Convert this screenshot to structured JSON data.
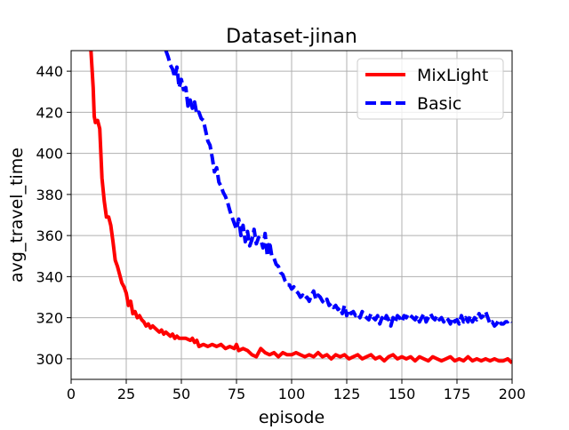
{
  "chart_data": {
    "type": "line",
    "title": "Dataset-jinan",
    "xlabel": "episode",
    "ylabel": "avg_travel_time",
    "xlim": [
      0,
      200
    ],
    "ylim": [
      290,
      450
    ],
    "xticks": [
      0,
      25,
      50,
      75,
      100,
      125,
      150,
      175,
      200
    ],
    "yticks": [
      300,
      320,
      340,
      360,
      380,
      400,
      420,
      440
    ],
    "grid": true,
    "legend_position": "top-right",
    "series": [
      {
        "name": "MixLight",
        "color": "#ff0000",
        "style": "solid",
        "points": [
          [
            9,
            450
          ],
          [
            10,
            432
          ],
          [
            10.5,
            418
          ],
          [
            11,
            415
          ],
          [
            12,
            416
          ],
          [
            13,
            412
          ],
          [
            14,
            388
          ],
          [
            15,
            377
          ],
          [
            16,
            369
          ],
          [
            17,
            369
          ],
          [
            18,
            365
          ],
          [
            19,
            357
          ],
          [
            20,
            348
          ],
          [
            21,
            345
          ],
          [
            22,
            341
          ],
          [
            23,
            337
          ],
          [
            24,
            335
          ],
          [
            25,
            332
          ],
          [
            26,
            326
          ],
          [
            27,
            328
          ],
          [
            28,
            322
          ],
          [
            29,
            323
          ],
          [
            30,
            320
          ],
          [
            31,
            321
          ],
          [
            32,
            319
          ],
          [
            33,
            318
          ],
          [
            34,
            316
          ],
          [
            35,
            317
          ],
          [
            36,
            315
          ],
          [
            37,
            316
          ],
          [
            38,
            315
          ],
          [
            39,
            314
          ],
          [
            40,
            313
          ],
          [
            41,
            314
          ],
          [
            42,
            312
          ],
          [
            43,
            313
          ],
          [
            44,
            312
          ],
          [
            45,
            311
          ],
          [
            46,
            312
          ],
          [
            47,
            310
          ],
          [
            48,
            311
          ],
          [
            49,
            310
          ],
          [
            50,
            310
          ],
          [
            52,
            310
          ],
          [
            54,
            309
          ],
          [
            55,
            310
          ],
          [
            56,
            308
          ],
          [
            57,
            309
          ],
          [
            58,
            306
          ],
          [
            60,
            307
          ],
          [
            62,
            306
          ],
          [
            64,
            307
          ],
          [
            66,
            306
          ],
          [
            68,
            307
          ],
          [
            70,
            305
          ],
          [
            72,
            306
          ],
          [
            74,
            305
          ],
          [
            75,
            307
          ],
          [
            76,
            304
          ],
          [
            78,
            305
          ],
          [
            80,
            304
          ],
          [
            82,
            302
          ],
          [
            84,
            301
          ],
          [
            85,
            303
          ],
          [
            86,
            305
          ],
          [
            88,
            303
          ],
          [
            90,
            302
          ],
          [
            92,
            303
          ],
          [
            94,
            301
          ],
          [
            96,
            303
          ],
          [
            98,
            302
          ],
          [
            100,
            302
          ],
          [
            102,
            303
          ],
          [
            104,
            302
          ],
          [
            106,
            301
          ],
          [
            108,
            302
          ],
          [
            110,
            301
          ],
          [
            112,
            303
          ],
          [
            114,
            301
          ],
          [
            116,
            302
          ],
          [
            118,
            300
          ],
          [
            120,
            302
          ],
          [
            122,
            301
          ],
          [
            124,
            302
          ],
          [
            126,
            300
          ],
          [
            128,
            301
          ],
          [
            130,
            302
          ],
          [
            132,
            300
          ],
          [
            134,
            301
          ],
          [
            136,
            302
          ],
          [
            138,
            300
          ],
          [
            140,
            301
          ],
          [
            142,
            299
          ],
          [
            144,
            301
          ],
          [
            146,
            302
          ],
          [
            148,
            300
          ],
          [
            150,
            301
          ],
          [
            152,
            300
          ],
          [
            154,
            301
          ],
          [
            156,
            299
          ],
          [
            158,
            301
          ],
          [
            160,
            300
          ],
          [
            162,
            299
          ],
          [
            164,
            301
          ],
          [
            166,
            300
          ],
          [
            168,
            299
          ],
          [
            170,
            300
          ],
          [
            172,
            301
          ],
          [
            174,
            299
          ],
          [
            176,
            300
          ],
          [
            178,
            299
          ],
          [
            180,
            301
          ],
          [
            182,
            299
          ],
          [
            184,
            300
          ],
          [
            186,
            299
          ],
          [
            188,
            300
          ],
          [
            190,
            299
          ],
          [
            192,
            300
          ],
          [
            194,
            299
          ],
          [
            196,
            299
          ],
          [
            198,
            300
          ],
          [
            200,
            298
          ]
        ]
      },
      {
        "name": "Basic",
        "color": "#0000ff",
        "style": "dashed",
        "points": [
          [
            43,
            450
          ],
          [
            44,
            447
          ],
          [
            45,
            443
          ],
          [
            46,
            441
          ],
          [
            47,
            437
          ],
          [
            48,
            442
          ],
          [
            49,
            432
          ],
          [
            50,
            436
          ],
          [
            51,
            431
          ],
          [
            52,
            432
          ],
          [
            53,
            423
          ],
          [
            54,
            426
          ],
          [
            55,
            422
          ],
          [
            56,
            425
          ],
          [
            57,
            419
          ],
          [
            58,
            420
          ],
          [
            59,
            417
          ],
          [
            60,
            416
          ],
          [
            61,
            411
          ],
          [
            62,
            406
          ],
          [
            63,
            404
          ],
          [
            64,
            398
          ],
          [
            65,
            391
          ],
          [
            66,
            393
          ],
          [
            67,
            386
          ],
          [
            68,
            384
          ],
          [
            69,
            381
          ],
          [
            70,
            379
          ],
          [
            71,
            376
          ],
          [
            72,
            372
          ],
          [
            73,
            369
          ],
          [
            74,
            366
          ],
          [
            75,
            363
          ],
          [
            76,
            368
          ],
          [
            77,
            360
          ],
          [
            78,
            365
          ],
          [
            79,
            357
          ],
          [
            80,
            362
          ],
          [
            81,
            355
          ],
          [
            82,
            358
          ],
          [
            83,
            363
          ],
          [
            84,
            356
          ],
          [
            85,
            359
          ],
          [
            86,
            358
          ],
          [
            87,
            354
          ],
          [
            88,
            361
          ],
          [
            89,
            350
          ],
          [
            90,
            357
          ],
          [
            91,
            350
          ],
          [
            92,
            349
          ],
          [
            93,
            346
          ],
          [
            94,
            345
          ],
          [
            95,
            342
          ],
          [
            96,
            341
          ],
          [
            97,
            338
          ],
          [
            98,
            336
          ],
          [
            99,
            336
          ],
          [
            100,
            334
          ],
          [
            101,
            335
          ],
          [
            102,
            333
          ],
          [
            103,
            332
          ],
          [
            104,
            330
          ],
          [
            105,
            331
          ],
          [
            106,
            329
          ],
          [
            107,
            330
          ],
          [
            108,
            328
          ],
          [
            109,
            331
          ],
          [
            110,
            333
          ],
          [
            111,
            329
          ],
          [
            112,
            331
          ],
          [
            113,
            330
          ],
          [
            114,
            328
          ],
          [
            115,
            327
          ],
          [
            116,
            329
          ],
          [
            117,
            326
          ],
          [
            118,
            327
          ],
          [
            119,
            325
          ],
          [
            120,
            326
          ],
          [
            121,
            324
          ],
          [
            122,
            325
          ],
          [
            123,
            322
          ],
          [
            124,
            326
          ],
          [
            125,
            321
          ],
          [
            126,
            324
          ],
          [
            127,
            322
          ],
          [
            128,
            323
          ],
          [
            129,
            321
          ],
          [
            130,
            322
          ],
          [
            131,
            320
          ],
          [
            132,
            323
          ],
          [
            133,
            321
          ],
          [
            134,
            320
          ],
          [
            135,
            319
          ],
          [
            136,
            322
          ],
          [
            137,
            320
          ],
          [
            138,
            319
          ],
          [
            139,
            321
          ],
          [
            140,
            317
          ],
          [
            141,
            320
          ],
          [
            142,
            318
          ],
          [
            143,
            321
          ],
          [
            144,
            319
          ],
          [
            145,
            316
          ],
          [
            146,
            320
          ],
          [
            147,
            318
          ],
          [
            148,
            321
          ],
          [
            149,
            320
          ],
          [
            150,
            318
          ],
          [
            151,
            321
          ],
          [
            152,
            320
          ],
          [
            153,
            322
          ],
          [
            154,
            321
          ],
          [
            155,
            320
          ],
          [
            156,
            319
          ],
          [
            157,
            321
          ],
          [
            158,
            318
          ],
          [
            159,
            320
          ],
          [
            160,
            322
          ],
          [
            161,
            318
          ],
          [
            162,
            320
          ],
          [
            163,
            322
          ],
          [
            164,
            320
          ],
          [
            165,
            319
          ],
          [
            166,
            321
          ],
          [
            167,
            319
          ],
          [
            168,
            320
          ],
          [
            169,
            318
          ],
          [
            170,
            320
          ],
          [
            171,
            319
          ],
          [
            172,
            317
          ],
          [
            173,
            320
          ],
          [
            174,
            318
          ],
          [
            175,
            319
          ],
          [
            176,
            317
          ],
          [
            177,
            321
          ],
          [
            178,
            318
          ],
          [
            179,
            320
          ],
          [
            180,
            318
          ],
          [
            181,
            321
          ],
          [
            182,
            318
          ],
          [
            183,
            320
          ],
          [
            184,
            319
          ],
          [
            185,
            322
          ],
          [
            186,
            320
          ],
          [
            187,
            321
          ],
          [
            188,
            323
          ],
          [
            189,
            320
          ],
          [
            190,
            317
          ],
          [
            191,
            318
          ],
          [
            192,
            316
          ],
          [
            193,
            317
          ],
          [
            194,
            319
          ],
          [
            195,
            317
          ],
          [
            196,
            317
          ],
          [
            197,
            318
          ],
          [
            198,
            318
          ],
          [
            199,
            319
          ],
          [
            200,
            318
          ]
        ]
      }
    ]
  }
}
